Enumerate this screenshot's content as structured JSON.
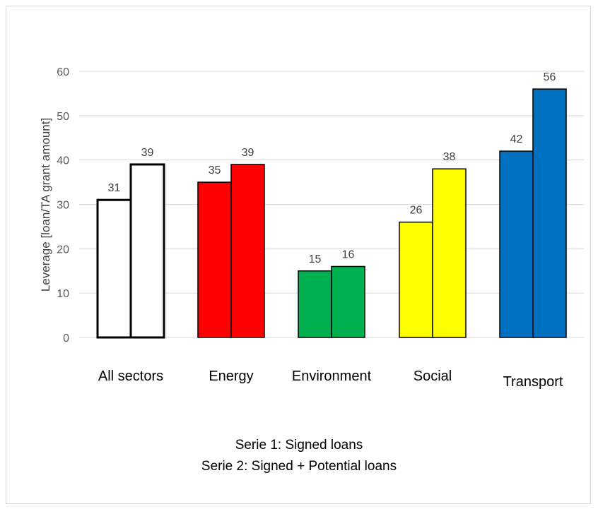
{
  "chart_data": {
    "type": "bar",
    "categories": [
      "All sectors",
      "Energy",
      "Environment",
      "Social",
      "Transport"
    ],
    "series": [
      {
        "values": [
          31,
          35,
          15,
          26,
          42
        ]
      },
      {
        "values": [
          39,
          39,
          16,
          38,
          56
        ]
      }
    ],
    "bar_fills": [
      "#ffffff",
      "#ff0000",
      "#00b050",
      "#ffff00",
      "#0070c0"
    ],
    "bar_strokes": [
      "#000000",
      "#000000",
      "#000000",
      "#000000",
      "#000000"
    ],
    "gridline_color": "#d9d9d9",
    "ylabel": "Leverage [loan/TA grant amount]",
    "xlabel": "",
    "title": "",
    "ylim": [
      0,
      60
    ],
    "yticks": [
      0,
      10,
      20,
      30,
      40,
      50,
      60
    ],
    "grid": true,
    "notes": [
      "Serie 1: Signed loans",
      "Serie 2: Signed + Potential loans"
    ]
  }
}
